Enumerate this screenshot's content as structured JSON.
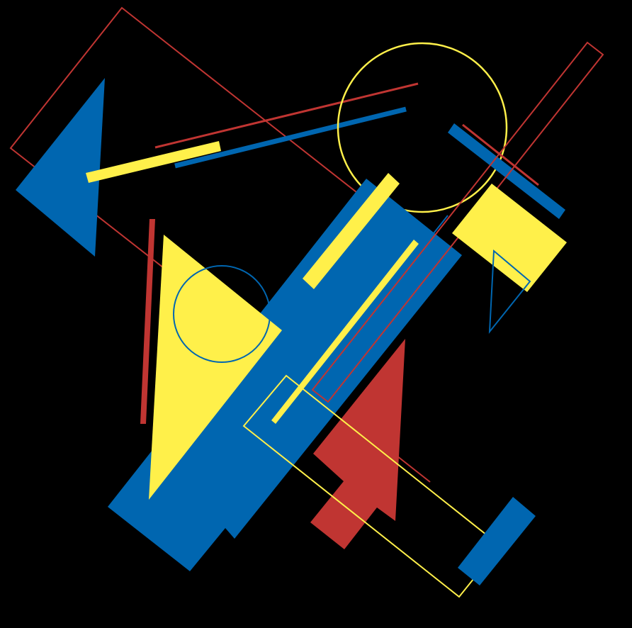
{
  "artwork": {
    "style": "suprematist geometric abstraction",
    "palette": {
      "background": "#000000",
      "blue": "#0066b0",
      "yellow": "#fff04a",
      "red": "#c03532"
    }
  }
}
